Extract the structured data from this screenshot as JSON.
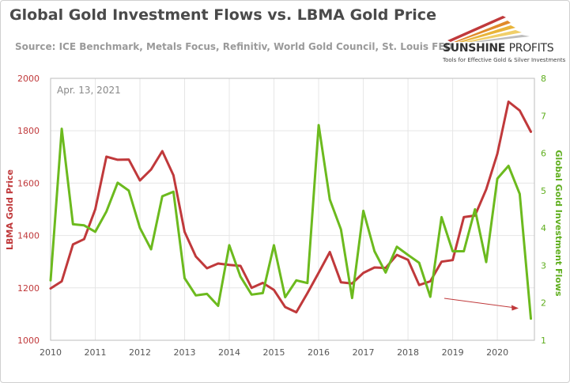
{
  "header": {
    "title": "Global Gold Investment Flows vs. LBMA Gold Price",
    "subtitle": "Source: ICE Benchmark, Metals Focus, Refinitiv, World Gold Council, St. Louis FED"
  },
  "logo": {
    "name_part1": "SUNSHINE",
    "name_part2": "PROFITS",
    "tagline": "Tools for Effective Gold & Silver Investments"
  },
  "annotation": {
    "date_label": "Apr. 13, 2021"
  },
  "colors": {
    "gold_price": "#c0393b",
    "investment_flows": "#6cba1e",
    "grid": "#e6e6e6",
    "plot_border": "#bdbdbd"
  },
  "chart_data": {
    "type": "line",
    "xlabel": "",
    "x_ticks": [
      "2010",
      "2011",
      "2012",
      "2013",
      "2014",
      "2015",
      "2016",
      "2017",
      "2018",
      "2019",
      "2020"
    ],
    "xlim": [
      2010,
      2020.83
    ],
    "y_left": {
      "label": "LBMA Gold Price",
      "ticks": [
        "1000",
        "1200",
        "1400",
        "1600",
        "1800",
        "2000"
      ],
      "lim": [
        1000,
        2000
      ]
    },
    "y_right": {
      "label": "Global Gold Investment Flows",
      "ticks": [
        "1",
        "2",
        "3",
        "4",
        "5",
        "6",
        "7",
        "8"
      ],
      "lim": [
        1,
        8
      ]
    },
    "grid": true,
    "series": [
      {
        "name": "LBMA Gold Price",
        "axis": "left",
        "x": [
          2010.0,
          2010.25,
          2010.5,
          2010.75,
          2011.0,
          2011.25,
          2011.5,
          2011.75,
          2012.0,
          2012.25,
          2012.5,
          2012.75,
          2013.0,
          2013.25,
          2013.5,
          2013.75,
          2014.0,
          2014.25,
          2014.5,
          2014.75,
          2015.0,
          2015.25,
          2015.5,
          2015.75,
          2016.0,
          2016.25,
          2016.5,
          2016.75,
          2017.0,
          2017.25,
          2017.5,
          2017.75,
          2018.0,
          2018.25,
          2018.5,
          2018.75,
          2019.0,
          2019.25,
          2019.5,
          2019.75,
          2020.0,
          2020.25,
          2020.5,
          2020.75
        ],
        "values": [
          1198,
          1225,
          1366,
          1386,
          1500,
          1701,
          1689,
          1690,
          1610,
          1652,
          1722,
          1630,
          1414,
          1320,
          1275,
          1293,
          1288,
          1284,
          1200,
          1219,
          1192,
          1127,
          1107,
          1180,
          1258,
          1337,
          1221,
          1217,
          1257,
          1278,
          1276,
          1326,
          1307,
          1211,
          1225,
          1300,
          1306,
          1470,
          1476,
          1576,
          1712,
          1911,
          1877,
          1796
        ]
      },
      {
        "name": "Global Gold Investment Flows",
        "axis": "right",
        "x": [
          2010.0,
          2010.25,
          2010.5,
          2010.75,
          2011.0,
          2011.25,
          2011.5,
          2011.75,
          2012.0,
          2012.25,
          2012.5,
          2012.75,
          2013.0,
          2013.25,
          2013.5,
          2013.75,
          2014.0,
          2014.25,
          2014.5,
          2014.75,
          2015.0,
          2015.25,
          2015.5,
          2015.75,
          2016.0,
          2016.25,
          2016.5,
          2016.75,
          2017.0,
          2017.25,
          2017.5,
          2017.75,
          2018.0,
          2018.25,
          2018.5,
          2018.75,
          2019.0,
          2019.25,
          2019.5,
          2019.75,
          2020.0,
          2020.25,
          2020.5,
          2020.75
        ],
        "values": [
          2.6,
          6.65,
          4.1,
          4.07,
          3.9,
          4.44,
          5.21,
          5.0,
          4.0,
          3.43,
          4.85,
          4.97,
          2.66,
          2.2,
          2.24,
          1.92,
          3.54,
          2.7,
          2.22,
          2.26,
          3.54,
          2.15,
          2.6,
          2.53,
          6.75,
          4.76,
          3.96,
          2.13,
          4.46,
          3.38,
          2.81,
          3.5,
          3.28,
          3.07,
          2.16,
          4.29,
          3.38,
          3.38,
          4.5,
          3.09,
          5.32,
          5.66,
          4.91,
          1.58
        ]
      }
    ]
  }
}
